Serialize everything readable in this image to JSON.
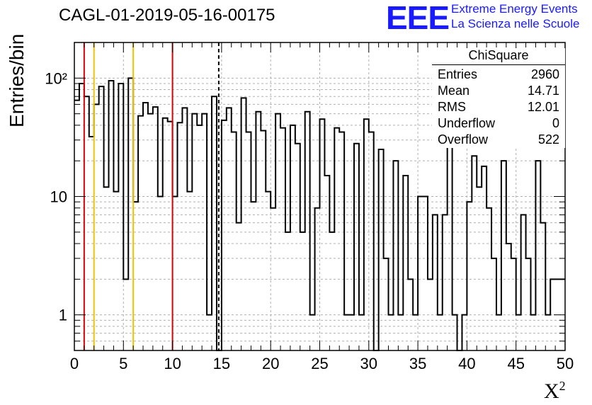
{
  "title": "CAGL-01-2019-05-16-00175",
  "logo": {
    "mark": "EEE",
    "line1": "Extreme Energy Events",
    "line2": "La Scienza nelle Scuole"
  },
  "colors": {
    "accent": "#1a1aff",
    "red_line": "#dd0000",
    "yellow_line": "#f2c200",
    "histogram": "#000000"
  },
  "stats": {
    "header": "ChiSquare",
    "rows": [
      {
        "label": "Entries",
        "value": "2960"
      },
      {
        "label": "Mean",
        "value": "14.71"
      },
      {
        "label": "RMS",
        "value": "12.01"
      },
      {
        "label": "Underflow",
        "value": "0"
      },
      {
        "label": "Overflow",
        "value": "522"
      }
    ]
  },
  "chart_data": {
    "type": "histogram",
    "title": "CAGL-01-2019-05-16-00175",
    "xlabel": "X²",
    "ylabel": "Entries/bin",
    "xlim": [
      0,
      50
    ],
    "ylim": [
      0.5,
      200
    ],
    "yscale": "log",
    "grid": true,
    "bin_width": 0.5,
    "x_ticks": [
      "0",
      "5",
      "10",
      "15",
      "20",
      "25",
      "30",
      "35",
      "40",
      "45",
      "50"
    ],
    "y_ticks": [
      "1",
      "10",
      "10²"
    ],
    "values": [
      65,
      90,
      70,
      32,
      60,
      85,
      12,
      95,
      11,
      90,
      2,
      100,
      9,
      48,
      62,
      50,
      57,
      10,
      46,
      43,
      10,
      42,
      56,
      11,
      50,
      40,
      50,
      1,
      70,
      0,
      44,
      56,
      35,
      6,
      68,
      35,
      9,
      52,
      36,
      11,
      8,
      50,
      38,
      5,
      40,
      28,
      5,
      52,
      1,
      8,
      45,
      15,
      5,
      38,
      35,
      1,
      1,
      28,
      1,
      45,
      35,
      0,
      25,
      3,
      1,
      20,
      1,
      15,
      2,
      1,
      10,
      10,
      2,
      7,
      1,
      7,
      35,
      1,
      0,
      1,
      9,
      22,
      12,
      18,
      8,
      3,
      1,
      20,
      4,
      3,
      1,
      7,
      3,
      1,
      20,
      6,
      1,
      2,
      2,
      2
    ],
    "vertical_lines": [
      {
        "x": 1,
        "color": "red",
        "style": "solid"
      },
      {
        "x": 2,
        "color": "yellow",
        "style": "solid"
      },
      {
        "x": 6,
        "color": "yellow",
        "style": "solid"
      },
      {
        "x": 10,
        "color": "red",
        "style": "solid"
      },
      {
        "x": 14.71,
        "color": "black",
        "style": "dashed"
      }
    ]
  }
}
